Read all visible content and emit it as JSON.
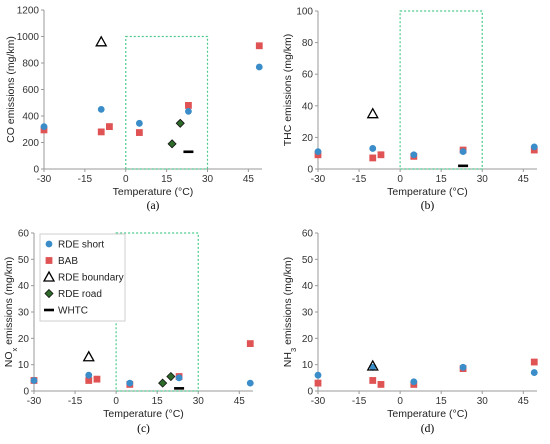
{
  "colors": {
    "rde_short": "#3A8DC8",
    "bab": "#E05354",
    "rde_boundary": "#000000",
    "rde_road": "#2E6B2A",
    "whtc": "#000000",
    "box": "#4CC98A",
    "axis": "#9A9A9A"
  },
  "legend": {
    "items": [
      {
        "key": "rde_short",
        "label": "RDE short",
        "marker": "circle"
      },
      {
        "key": "bab",
        "label": "BAB",
        "marker": "square"
      },
      {
        "key": "rde_boundary",
        "label": "RDE boundary",
        "marker": "triangle"
      },
      {
        "key": "rde_road",
        "label": "RDE road",
        "marker": "diamond"
      },
      {
        "key": "whtc",
        "label": "WHTC",
        "marker": "dash"
      }
    ]
  },
  "chart_data": [
    {
      "type": "scatter",
      "panel_label": "(a)",
      "xlabel": "Temperature (°C)",
      "ylabel_main": "CO emissions (mg/km)",
      "xlim": [
        -30,
        50
      ],
      "ylim": [
        0,
        1200
      ],
      "xticks": [
        -30,
        -15,
        0,
        15,
        30,
        45
      ],
      "yticks": [
        0,
        200,
        400,
        600,
        800,
        1000,
        1200
      ],
      "box": {
        "x": [
          0,
          30
        ],
        "y": [
          0,
          1000
        ]
      },
      "series": {
        "rde_short": [
          [
            -30,
            320
          ],
          [
            -9,
            450
          ],
          [
            5,
            345
          ],
          [
            23,
            435
          ],
          [
            49,
            770
          ]
        ],
        "bab": [
          [
            -30,
            295
          ],
          [
            -9,
            280
          ],
          [
            -6,
            320
          ],
          [
            5,
            275
          ],
          [
            23,
            480
          ]
        ],
        "rde_boundary": [
          [
            -9,
            960
          ]
        ],
        "rde_road": [
          [
            17,
            190
          ],
          [
            20,
            345
          ]
        ],
        "whtc": [
          [
            23,
            130
          ]
        ]
      },
      "bab_extra": [
        [
          49,
          930
        ]
      ]
    },
    {
      "type": "scatter",
      "panel_label": "(b)",
      "xlabel": "Temperature (°C)",
      "ylabel_main": "THC emissions (mg/km)",
      "xlim": [
        -30,
        50
      ],
      "ylim": [
        0,
        100
      ],
      "xticks": [
        -30,
        -15,
        0,
        15,
        30,
        45
      ],
      "yticks": [
        0,
        20,
        40,
        60,
        80,
        100
      ],
      "box": {
        "x": [
          0,
          30
        ],
        "y": [
          0,
          100
        ]
      },
      "series": {
        "rde_short": [
          [
            -30,
            11
          ],
          [
            -10,
            13
          ],
          [
            5,
            9
          ],
          [
            23,
            11
          ],
          [
            49,
            14
          ]
        ],
        "bab": [
          [
            -30,
            9
          ],
          [
            -10,
            7
          ],
          [
            -7,
            9
          ],
          [
            5,
            8
          ],
          [
            23,
            12
          ],
          [
            49,
            12
          ]
        ],
        "rde_boundary": [
          [
            -10,
            35
          ]
        ],
        "rde_road": [],
        "whtc": [
          [
            23,
            2
          ]
        ]
      }
    },
    {
      "type": "scatter",
      "panel_label": "(c)",
      "xlabel": "Temperature (°C)",
      "ylabel_main": "NO",
      "ylabel_sub": "x",
      "ylabel_rest": " emissions (mg/km)",
      "xlim": [
        -30,
        50
      ],
      "ylim": [
        0,
        60
      ],
      "xticks": [
        -30,
        -15,
        0,
        15,
        30,
        45
      ],
      "yticks": [
        0,
        10,
        20,
        30,
        40,
        50,
        60
      ],
      "box": {
        "x": [
          0,
          30
        ],
        "y": [
          0,
          60
        ]
      },
      "series": {
        "rde_short": [
          [
            -30,
            4
          ],
          [
            -10,
            6
          ],
          [
            5,
            3
          ],
          [
            23,
            5
          ],
          [
            49,
            3
          ]
        ],
        "bab": [
          [
            -30,
            4
          ],
          [
            -10,
            4
          ],
          [
            -7,
            4.5
          ],
          [
            5,
            2.5
          ],
          [
            23,
            5.5
          ],
          [
            49,
            18
          ]
        ],
        "rde_boundary": [
          [
            -10,
            13
          ]
        ],
        "rde_road": [
          [
            17,
            3
          ],
          [
            20,
            5.5
          ]
        ],
        "whtc": [
          [
            23,
            1
          ]
        ]
      }
    },
    {
      "type": "scatter",
      "panel_label": "(d)",
      "xlabel": "Temperature (°C)",
      "ylabel_main": "NH",
      "ylabel_sub": "3",
      "ylabel_rest": " emissions (mg/km)",
      "xlim": [
        -30,
        50
      ],
      "ylim": [
        0,
        60
      ],
      "xticks": [
        -30,
        -15,
        0,
        15,
        30,
        45
      ],
      "yticks": [
        0,
        10,
        20,
        30,
        40,
        50,
        60
      ],
      "box": null,
      "series": {
        "rde_short": [
          [
            -30,
            6
          ],
          [
            -10,
            9
          ],
          [
            5,
            3.5
          ],
          [
            23,
            9
          ],
          [
            49,
            7
          ]
        ],
        "bab": [
          [
            -30,
            3
          ],
          [
            -10,
            4
          ],
          [
            -7,
            2.5
          ],
          [
            5,
            2.5
          ],
          [
            23,
            8.5
          ],
          [
            49,
            11
          ]
        ],
        "rde_boundary": [
          [
            -10,
            9.5
          ]
        ],
        "rde_road": [],
        "whtc": []
      }
    }
  ]
}
